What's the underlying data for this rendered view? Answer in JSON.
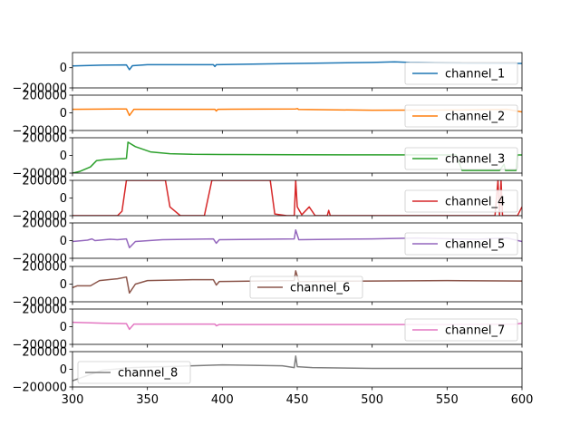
{
  "chart_data": {
    "type": "line",
    "xlim": [
      300,
      600
    ],
    "x_ticks": [
      300,
      350,
      400,
      450,
      500,
      550,
      600
    ],
    "x_tick_labels": [
      "300",
      "350",
      "400",
      "450",
      "500",
      "550",
      "600"
    ],
    "y_tick_labels": [
      "−200000",
      "0",
      "200000"
    ],
    "legend_placement": "right",
    "subplots": [
      {
        "series": [
          {
            "name": "channel_1",
            "color": "#1f77b4",
            "points": [
              [
                300,
                18000
              ],
              [
                320,
                25000
              ],
              [
                336,
                28000
              ],
              [
                338,
                -20000
              ],
              [
                340,
                20000
              ],
              [
                350,
                30000
              ],
              [
                394,
                30000
              ],
              [
                395,
                12000
              ],
              [
                396,
                30000
              ],
              [
                450,
                42000
              ],
              [
                500,
                52000
              ],
              [
                515,
                58000
              ],
              [
                525,
                52000
              ],
              [
                560,
                45000
              ],
              [
                600,
                42000
              ]
            ]
          }
        ],
        "ylim": [
          -200000,
          150000
        ],
        "y_ticks": [
          -200000,
          0
        ],
        "legend_placement": "right"
      },
      {
        "series": [
          {
            "name": "channel_2",
            "color": "#ff7f0e",
            "points": [
              [
                300,
                40000
              ],
              [
                336,
                44000
              ],
              [
                338,
                -30000
              ],
              [
                341,
                40000
              ],
              [
                395,
                40000
              ],
              [
                396,
                20000
              ],
              [
                397,
                40000
              ],
              [
                449,
                44000
              ],
              [
                450,
                48000
              ],
              [
                451,
                38000
              ],
              [
                500,
                30000
              ],
              [
                560,
                32000
              ],
              [
                590,
                40000
              ],
              [
                600,
                10000
              ]
            ]
          }
        ],
        "ylim": [
          -200000,
          200000
        ],
        "y_ticks": [
          -200000,
          0,
          200000
        ],
        "legend_placement": "right"
      },
      {
        "series": [
          {
            "name": "channel_3",
            "color": "#2ca02c",
            "points": [
              [
                300,
                -200000
              ],
              [
                305,
                -180000
              ],
              [
                312,
                -130000
              ],
              [
                316,
                -60000
              ],
              [
                323,
                -45000
              ],
              [
                330,
                -40000
              ],
              [
                336,
                -35000
              ],
              [
                337,
                150000
              ],
              [
                342,
                100000
              ],
              [
                352,
                40000
              ],
              [
                365,
                20000
              ],
              [
                380,
                12000
              ],
              [
                400,
                10000
              ],
              [
                450,
                8000
              ],
              [
                500,
                6000
              ],
              [
                556,
                5000
              ],
              [
                560,
                -170000
              ],
              [
                580,
                -170000
              ],
              [
                585,
                -170000
              ],
              [
                588,
                -100000
              ],
              [
                589,
                -170000
              ],
              [
                596,
                -170000
              ],
              [
                597,
                5000
              ],
              [
                600,
                5000
              ]
            ]
          }
        ],
        "ylim": [
          -200000,
          200000
        ],
        "y_ticks": [
          -200000,
          0,
          200000
        ],
        "legend_placement": "right"
      },
      {
        "series": [
          {
            "name": "channel_4",
            "color": "#d62728",
            "points": [
              [
                300,
                -200000
              ],
              [
                330,
                -200000
              ],
              [
                333,
                -150000
              ],
              [
                336,
                200000
              ],
              [
                362,
                200000
              ],
              [
                365,
                -100000
              ],
              [
                372,
                -200000
              ],
              [
                388,
                -200000
              ],
              [
                393,
                200000
              ],
              [
                432,
                200000
              ],
              [
                435,
                -180000
              ],
              [
                443,
                -200000
              ],
              [
                448,
                -200000
              ],
              [
                449,
                200000
              ],
              [
                450,
                -100000
              ],
              [
                453,
                -190000
              ],
              [
                458,
                -100000
              ],
              [
                462,
                -200000
              ],
              [
                470,
                -200000
              ],
              [
                471,
                -140000
              ],
              [
                472,
                -200000
              ],
              [
                582,
                -200000
              ],
              [
                584,
                200000
              ],
              [
                585,
                -200000
              ],
              [
                586,
                200000
              ],
              [
                587,
                -200000
              ],
              [
                597,
                -200000
              ],
              [
                600,
                -100000
              ]
            ]
          }
        ],
        "ylim": [
          -200000,
          200000
        ],
        "y_ticks": [
          -200000,
          0,
          200000
        ],
        "legend_placement": "right"
      },
      {
        "series": [
          {
            "name": "channel_5",
            "color": "#9467bd",
            "points": [
              [
                300,
                -10000
              ],
              [
                310,
                5000
              ],
              [
                313,
                20000
              ],
              [
                315,
                0
              ],
              [
                325,
                15000
              ],
              [
                330,
                10000
              ],
              [
                336,
                20000
              ],
              [
                338,
                -80000
              ],
              [
                342,
                -10000
              ],
              [
                360,
                10000
              ],
              [
                394,
                20000
              ],
              [
                396,
                -30000
              ],
              [
                398,
                10000
              ],
              [
                448,
                20000
              ],
              [
                449,
                120000
              ],
              [
                451,
                10000
              ],
              [
                500,
                20000
              ],
              [
                530,
                30000
              ],
              [
                555,
                20000
              ],
              [
                570,
                15000
              ],
              [
                590,
                30000
              ],
              [
                600,
                -10000
              ]
            ]
          }
        ],
        "ylim": [
          -200000,
          200000
        ],
        "y_ticks": [
          -200000,
          0,
          200000
        ],
        "legend_placement": "right"
      },
      {
        "series": [
          {
            "name": "channel_6",
            "color": "#8c564b",
            "points": [
              [
                300,
                -40000
              ],
              [
                303,
                -20000
              ],
              [
                312,
                -20000
              ],
              [
                318,
                40000
              ],
              [
                330,
                60000
              ],
              [
                336,
                80000
              ],
              [
                338,
                -100000
              ],
              [
                342,
                0
              ],
              [
                350,
                40000
              ],
              [
                380,
                50000
              ],
              [
                394,
                50000
              ],
              [
                396,
                -10000
              ],
              [
                398,
                30000
              ],
              [
                448,
                40000
              ],
              [
                449,
                150000
              ],
              [
                451,
                30000
              ],
              [
                500,
                35000
              ],
              [
                550,
                40000
              ],
              [
                600,
                35000
              ]
            ]
          }
        ],
        "ylim": [
          -200000,
          200000
        ],
        "y_ticks": [
          -200000,
          0,
          200000
        ],
        "legend_placement": "center"
      },
      {
        "series": [
          {
            "name": "channel_7",
            "color": "#e377c2",
            "points": [
              [
                300,
                50000
              ],
              [
                320,
                40000
              ],
              [
                336,
                35000
              ],
              [
                338,
                -30000
              ],
              [
                341,
                30000
              ],
              [
                395,
                30000
              ],
              [
                396,
                10000
              ],
              [
                398,
                25000
              ],
              [
                450,
                25000
              ],
              [
                500,
                25000
              ],
              [
                550,
                25000
              ],
              [
                596,
                30000
              ],
              [
                600,
                40000
              ]
            ]
          }
        ],
        "ylim": [
          -200000,
          200000
        ],
        "y_ticks": [
          -200000,
          0,
          200000
        ],
        "legend_placement": "right"
      },
      {
        "series": [
          {
            "name": "channel_8",
            "color": "#7f7f7f",
            "points": [
              [
                300,
                -130000
              ],
              [
                320,
                -10000
              ],
              [
                340,
                20000
              ],
              [
                380,
                40000
              ],
              [
                400,
                50000
              ],
              [
                420,
                45000
              ],
              [
                440,
                40000
              ],
              [
                448,
                20000
              ],
              [
                449,
                150000
              ],
              [
                450,
                30000
              ],
              [
                460,
                20000
              ],
              [
                500,
                10000
              ],
              [
                550,
                10000
              ],
              [
                600,
                10000
              ]
            ]
          }
        ],
        "ylim": [
          -200000,
          200000
        ],
        "y_ticks": [
          -200000,
          0,
          200000
        ],
        "legend_placement": "left"
      }
    ]
  }
}
